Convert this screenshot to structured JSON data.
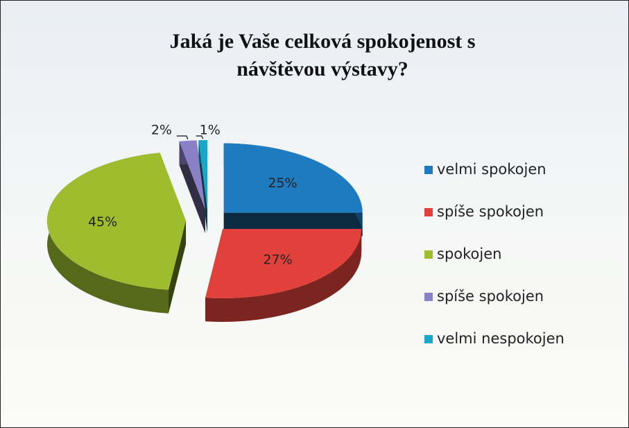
{
  "chart_data": {
    "type": "pie3d",
    "title": "Jaká je Vaše celková spokojenost s návštěvou výstavy?",
    "categories": [
      "velmi spokojen",
      "spíše spokojen",
      "spokojen",
      "spíše spokojen",
      "velmi nespokojen"
    ],
    "values": [
      25,
      27,
      45,
      2,
      1
    ],
    "value_labels": [
      "25%",
      "27%",
      "45%",
      "2%",
      "1%"
    ],
    "colors": [
      "#1f7bc0",
      "#e2413b",
      "#9dbd2f",
      "#8a80c6",
      "#19a6c9"
    ],
    "legend": "right"
  }
}
